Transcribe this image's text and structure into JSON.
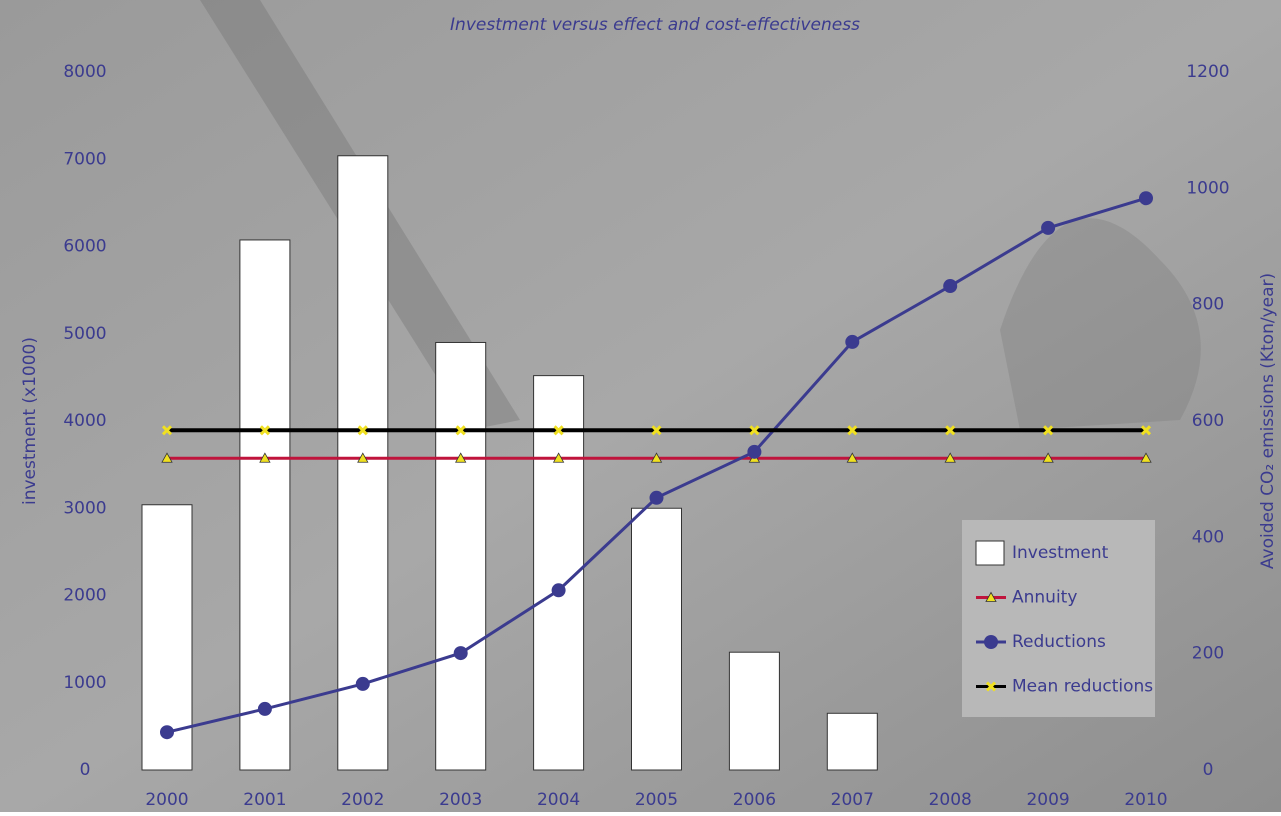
{
  "chart_data": {
    "type": "bar",
    "title": "Investment versus effect and cost-effectiveness",
    "ylabel": "investment (x1000)",
    "y2label": "Avoided CO₂ emissions (Kton/year)",
    "categories": [
      "2000",
      "2001",
      "2002",
      "2003",
      "2004",
      "2005",
      "2006",
      "2007",
      "2008",
      "2009",
      "2010"
    ],
    "ylim": [
      0,
      8000
    ],
    "yticks": [
      0,
      1000,
      2000,
      3000,
      4000,
      5000,
      6000,
      7000,
      8000
    ],
    "y2lim": [
      0,
      1200
    ],
    "y2ticks": [
      0,
      200,
      400,
      600,
      800,
      1000,
      1200
    ],
    "legend": "lower right",
    "series": [
      {
        "name": "Investment",
        "kind": "bar",
        "color": "#ffffff",
        "values": [
          3040,
          6075,
          7040,
          4900,
          4520,
          3000,
          1350,
          650,
          null,
          null,
          null
        ]
      },
      {
        "name": "Annuity",
        "kind": "line",
        "axis": "y2",
        "color": "#c0143c",
        "marker": "triangle",
        "marker_color": "#f0e020",
        "values": [
          536,
          536,
          536,
          536,
          536,
          536,
          536,
          536,
          536,
          536,
          536
        ]
      },
      {
        "name": "Reductions",
        "kind": "line",
        "axis": "y2",
        "color": "#3b3b8f",
        "marker": "circle",
        "marker_color": "#3b3b8f",
        "values": [
          65,
          105,
          148,
          201,
          309,
          468,
          547,
          736,
          832,
          932,
          983
        ]
      },
      {
        "name": "Mean reductions",
        "kind": "line",
        "axis": "y2",
        "color": "#000000",
        "marker": "x",
        "marker_color": "#f0e020",
        "values": [
          584,
          584,
          584,
          584,
          584,
          584,
          584,
          584,
          584,
          584,
          584
        ]
      }
    ]
  }
}
